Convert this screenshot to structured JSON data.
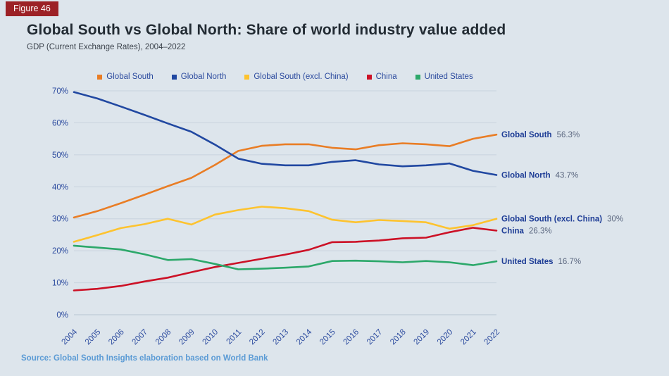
{
  "figure_label": "Figure 46",
  "title": "Global South vs Global North: Share of world industry value added",
  "subtitle": "GDP (Current Exchange Rates), 2004–2022",
  "source": "Source: Global South Insights elaboration based on World Bank",
  "colors": {
    "background": "#dde5ec",
    "badge": "#9c2126",
    "gridline": "#c8d3de",
    "axis_text": "#2b4a9e",
    "label_name": "#1e3d96",
    "label_value": "#5c6880",
    "source_text": "#5b9bd5"
  },
  "chart_data": {
    "type": "line",
    "title": "Global South vs Global North: Share of world industry value added",
    "subtitle": "GDP (Current Exchange Rates), 2004–2022",
    "x": [
      2004,
      2005,
      2006,
      2007,
      2008,
      2009,
      2010,
      2011,
      2012,
      2013,
      2014,
      2015,
      2016,
      2017,
      2018,
      2019,
      2020,
      2021,
      2022
    ],
    "ylim": [
      0,
      70
    ],
    "ytick_labels": [
      "0%",
      "10%",
      "20%",
      "30%",
      "40%",
      "50%",
      "60%",
      "70%"
    ],
    "grid": true,
    "legend_position": "top",
    "series": [
      {
        "name": "Global South",
        "color": "#e97d25",
        "end_label": "56.3%",
        "values": [
          30.4,
          32.4,
          34.9,
          37.5,
          40.2,
          42.8,
          46.8,
          51.2,
          52.8,
          53.3,
          53.3,
          52.2,
          51.7,
          53.0,
          53.6,
          53.3,
          52.7,
          55.0,
          56.3
        ]
      },
      {
        "name": "Global North",
        "color": "#2148a1",
        "end_label": "43.7%",
        "values": [
          69.6,
          67.6,
          65.1,
          62.5,
          59.8,
          57.2,
          53.2,
          48.8,
          47.2,
          46.7,
          46.7,
          47.8,
          48.3,
          47.0,
          46.4,
          46.7,
          47.3,
          45.0,
          43.7
        ]
      },
      {
        "name": "Global South (excl. China)",
        "color": "#fdc32f",
        "end_label": "30%",
        "values": [
          22.8,
          24.9,
          27.1,
          28.3,
          30.0,
          28.2,
          31.3,
          32.7,
          33.8,
          33.3,
          32.4,
          29.7,
          28.9,
          29.6,
          29.3,
          28.9,
          26.9,
          28.0,
          30.0
        ]
      },
      {
        "name": "China",
        "color": "#cc1126",
        "end_label": "26.3%",
        "values": [
          7.6,
          8.1,
          9.0,
          10.4,
          11.6,
          13.3,
          14.9,
          16.2,
          17.5,
          18.8,
          20.3,
          22.7,
          22.8,
          23.2,
          23.9,
          24.1,
          25.8,
          27.2,
          26.3
        ]
      },
      {
        "name": "United States",
        "color": "#2ca86a",
        "end_label": "16.7%",
        "values": [
          21.6,
          21.0,
          20.4,
          18.9,
          17.1,
          17.4,
          15.9,
          14.2,
          14.4,
          14.7,
          15.1,
          16.8,
          16.9,
          16.7,
          16.4,
          16.8,
          16.4,
          15.5,
          16.7
        ]
      }
    ]
  }
}
